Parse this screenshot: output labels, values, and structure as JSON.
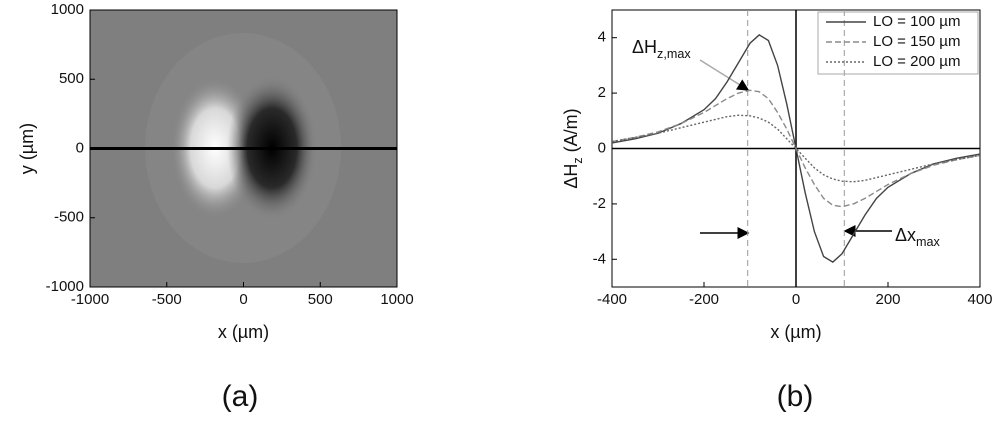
{
  "chart_data": [
    {
      "type": "image",
      "label": "(a)",
      "x_label": "x (µm)",
      "y_label": "y (µm)",
      "xlim": [
        -1000,
        1000
      ],
      "xticks": [
        -1000,
        -500,
        0,
        500,
        1000
      ],
      "ylim": [
        -1000,
        1000
      ],
      "yticks": [
        -1000,
        -500,
        0,
        500,
        1000
      ]
    },
    {
      "type": "line",
      "label": "(b)",
      "x_label": "x (µm)",
      "y_label": {
        "text": "ΔH",
        "sub": "z",
        "suffix": " (A/m)"
      },
      "xlim": [
        -400,
        400
      ],
      "xticks": [
        -400,
        -200,
        0,
        200,
        400
      ],
      "ylim": [
        -5,
        5
      ],
      "yticks": [
        -4,
        -2,
        0,
        2,
        4
      ],
      "zero_lines": true,
      "reference_lines": [
        -105,
        105
      ],
      "legend": "top-right",
      "annotations": [
        {
          "text": "ΔH",
          "sub": "z,max"
        },
        {
          "text": "Δx",
          "sub": "max"
        }
      ],
      "x": [
        -400,
        -350,
        -300,
        -250,
        -200,
        -175,
        -150,
        -125,
        -100,
        -80,
        -60,
        -40,
        -20,
        0,
        20,
        40,
        60,
        80,
        100,
        125,
        150,
        175,
        200,
        250,
        300,
        350,
        400
      ],
      "series": [
        {
          "name": "LO = 100 µm",
          "color": "#444444",
          "dash": "none",
          "values": [
            0.2,
            0.35,
            0.55,
            0.9,
            1.4,
            1.8,
            2.4,
            3.1,
            3.8,
            4.1,
            3.9,
            3.0,
            1.6,
            0,
            -1.6,
            -3.0,
            -3.9,
            -4.1,
            -3.8,
            -3.1,
            -2.4,
            -1.8,
            -1.4,
            -0.9,
            -0.55,
            -0.35,
            -0.2
          ]
        },
        {
          "name": "LO = 150 µm",
          "color": "#8a8a8a",
          "dash": "6,3",
          "values": [
            0.25,
            0.4,
            0.6,
            0.9,
            1.3,
            1.55,
            1.8,
            2.0,
            2.1,
            2.05,
            1.8,
            1.3,
            0.7,
            0,
            -0.7,
            -1.3,
            -1.8,
            -2.05,
            -2.1,
            -2.0,
            -1.8,
            -1.55,
            -1.3,
            -0.9,
            -0.6,
            -0.4,
            -0.25
          ]
        },
        {
          "name": "LO = 200 µm",
          "color": "#666666",
          "dash": "2,2",
          "values": [
            0.25,
            0.4,
            0.55,
            0.75,
            0.95,
            1.05,
            1.15,
            1.2,
            1.18,
            1.1,
            0.95,
            0.7,
            0.35,
            0,
            -0.35,
            -0.7,
            -0.95,
            -1.1,
            -1.18,
            -1.2,
            -1.15,
            -1.05,
            -0.95,
            -0.75,
            -0.55,
            -0.4,
            -0.25
          ]
        }
      ]
    }
  ]
}
